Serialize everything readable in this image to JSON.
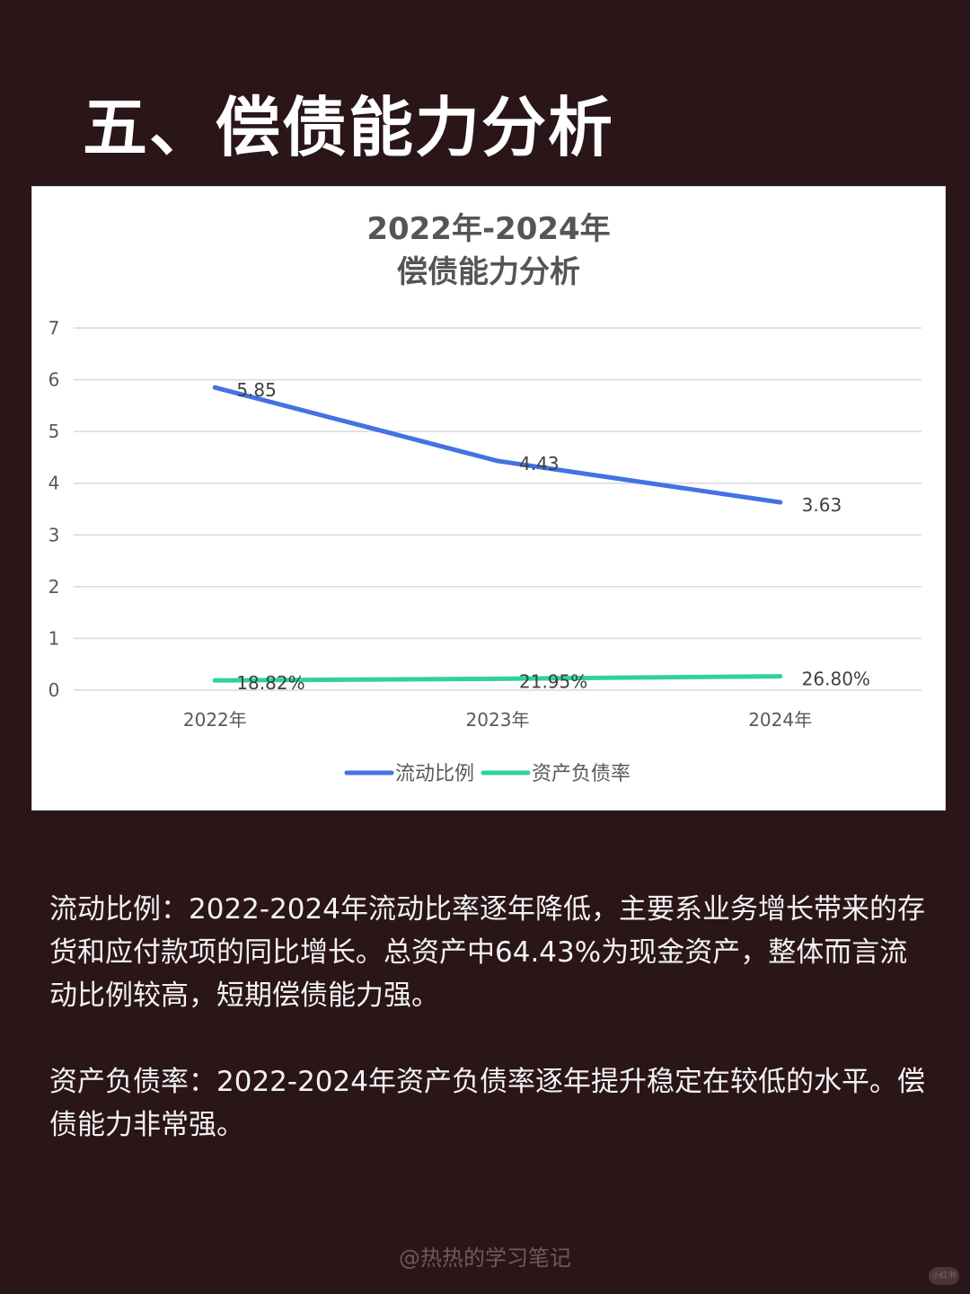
{
  "page": {
    "heading": "五、偿债能力分析",
    "paragraphs": [
      "流动比例：2022-2024年流动比率逐年降低，主要系业务增长带来的存货和应付款项的同比增长。总资产中64.43%为现金资产，整体而言流动比例较高，短期偿债能力强。",
      "资产负债率：2022-2024年资产负债率逐年提升稳定在较低的水平。偿债能力非常强。"
    ],
    "watermark": "@热热的学习笔记",
    "corner_logo_text": "小红书"
  },
  "chart_data": {
    "type": "line",
    "title_lines": [
      "2022年-2024年",
      "偿债能力分析"
    ],
    "categories": [
      "2022年",
      "2023年",
      "2024年"
    ],
    "ylim": [
      0,
      7
    ],
    "yticks": [
      "0",
      "1",
      "2",
      "3",
      "4",
      "5",
      "6",
      "7"
    ],
    "grid": true,
    "legend_position": "bottom",
    "series": [
      {
        "name": "流动比例",
        "values": [
          5.85,
          4.43,
          3.63
        ],
        "labels": [
          "5.85",
          "4.43",
          "3.63"
        ],
        "color": "#4472e4"
      },
      {
        "name": "资产负债率",
        "values": [
          0.1882,
          0.2195,
          0.268
        ],
        "labels": [
          "18.82%",
          "21.95%",
          "26.80%"
        ],
        "color": "#2fd39a"
      }
    ]
  }
}
